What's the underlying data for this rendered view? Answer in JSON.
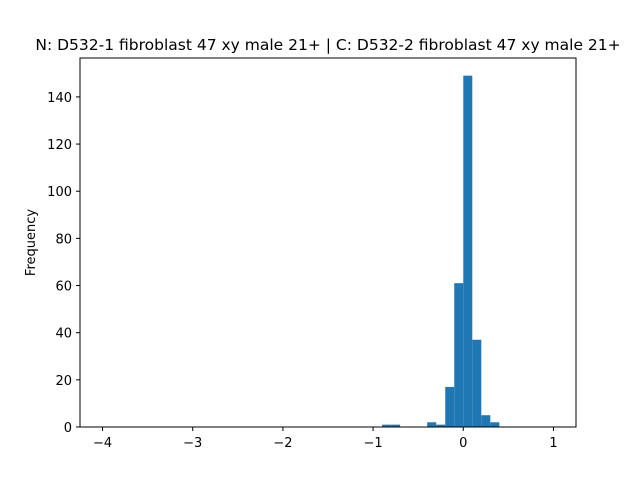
{
  "chart_data": {
    "type": "bar",
    "title": "N: D532-1 fibroblast 47 xy male 21+ | C: D532-2 fibroblast 47 xy male 21+",
    "xlabel": "",
    "ylabel": "Frequency",
    "xlim": [
      -4.25,
      1.25
    ],
    "ylim": [
      0,
      156.5
    ],
    "xticks": [
      -4,
      -3,
      -2,
      -1,
      0,
      1
    ],
    "xtick_labels": [
      "−4",
      "−3",
      "−2",
      "−1",
      "0",
      "1"
    ],
    "yticks": [
      0,
      20,
      40,
      60,
      80,
      100,
      120,
      140
    ],
    "ytick_labels": [
      "0",
      "20",
      "40",
      "60",
      "80",
      "100",
      "120",
      "140"
    ],
    "bar_color": "#1f77b4",
    "grid": false,
    "bins": [
      {
        "x0": -0.9,
        "x1": -0.8,
        "count": 1
      },
      {
        "x0": -0.8,
        "x1": -0.7,
        "count": 1
      },
      {
        "x0": -0.4,
        "x1": -0.3,
        "count": 2
      },
      {
        "x0": -0.3,
        "x1": -0.2,
        "count": 1
      },
      {
        "x0": -0.2,
        "x1": -0.1,
        "count": 17
      },
      {
        "x0": -0.1,
        "x1": 0.0,
        "count": 61
      },
      {
        "x0": 0.0,
        "x1": 0.1,
        "count": 149
      },
      {
        "x0": 0.1,
        "x1": 0.2,
        "count": 37
      },
      {
        "x0": 0.2,
        "x1": 0.3,
        "count": 5
      },
      {
        "x0": 0.3,
        "x1": 0.4,
        "count": 2
      }
    ]
  }
}
